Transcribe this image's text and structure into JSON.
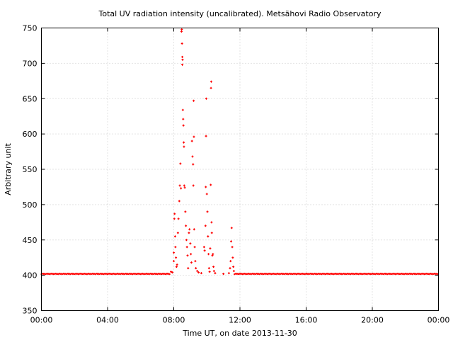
{
  "chart_data": {
    "type": "scatter",
    "title": "Total UV radiation intensity (uncalibrated). Metsähovi Radio Observatory",
    "xlabel": "Time UT, on date 2013-11-30",
    "ylabel": "Arbitrary unit",
    "xlim": [
      "00:00",
      "24:00"
    ],
    "ylim": [
      350,
      750
    ],
    "x_ticks": [
      "00:00",
      "04:00",
      "08:00",
      "12:00",
      "16:00",
      "20:00",
      "00:00"
    ],
    "y_ticks": [
      350,
      400,
      450,
      500,
      550,
      600,
      650,
      700,
      750
    ],
    "grid": true,
    "colors": {
      "series": "#ff0000",
      "grid": "#c8c8c8",
      "axis": "#000000"
    },
    "series": [
      {
        "baseline_segments": [
          {
            "x": [
              "00:00",
              "07:45"
            ],
            "y": 402
          },
          {
            "x": [
              "11:40",
              "24:00"
            ],
            "y": 402
          }
        ],
        "points": [
          {
            "x": "07:50",
            "y": 405
          },
          {
            "x": "07:55",
            "y": 404
          },
          {
            "x": "08:00",
            "y": 420
          },
          {
            "x": "08:00",
            "y": 432
          },
          {
            "x": "08:02",
            "y": 480
          },
          {
            "x": "08:03",
            "y": 487
          },
          {
            "x": "08:05",
            "y": 455
          },
          {
            "x": "08:06",
            "y": 440
          },
          {
            "x": "08:08",
            "y": 425
          },
          {
            "x": "08:10",
            "y": 412
          },
          {
            "x": "08:12",
            "y": 415
          },
          {
            "x": "08:15",
            "y": 460
          },
          {
            "x": "08:17",
            "y": 480
          },
          {
            "x": "08:20",
            "y": 505
          },
          {
            "x": "08:22",
            "y": 527
          },
          {
            "x": "08:24",
            "y": 558
          },
          {
            "x": "08:26",
            "y": 523
          },
          {
            "x": "08:28",
            "y": 745
          },
          {
            "x": "08:29",
            "y": 748
          },
          {
            "x": "08:30",
            "y": 728
          },
          {
            "x": "08:31",
            "y": 709
          },
          {
            "x": "08:31",
            "y": 698
          },
          {
            "x": "08:32",
            "y": 705
          },
          {
            "x": "08:33",
            "y": 634
          },
          {
            "x": "08:34",
            "y": 621
          },
          {
            "x": "08:35",
            "y": 612
          },
          {
            "x": "08:36",
            "y": 588
          },
          {
            "x": "08:37",
            "y": 582
          },
          {
            "x": "08:38",
            "y": 527
          },
          {
            "x": "08:40",
            "y": 524
          },
          {
            "x": "08:42",
            "y": 490
          },
          {
            "x": "08:44",
            "y": 470
          },
          {
            "x": "08:46",
            "y": 450
          },
          {
            "x": "08:48",
            "y": 440
          },
          {
            "x": "08:50",
            "y": 428
          },
          {
            "x": "08:52",
            "y": 410
          },
          {
            "x": "08:55",
            "y": 460
          },
          {
            "x": "08:57",
            "y": 465
          },
          {
            "x": "09:00",
            "y": 445
          },
          {
            "x": "09:02",
            "y": 430
          },
          {
            "x": "09:04",
            "y": 418
          },
          {
            "x": "09:06",
            "y": 590
          },
          {
            "x": "09:08",
            "y": 568
          },
          {
            "x": "09:10",
            "y": 557
          },
          {
            "x": "09:11",
            "y": 527
          },
          {
            "x": "09:12",
            "y": 647
          },
          {
            "x": "09:13",
            "y": 596
          },
          {
            "x": "09:14",
            "y": 465
          },
          {
            "x": "09:16",
            "y": 440
          },
          {
            "x": "09:18",
            "y": 420
          },
          {
            "x": "09:20",
            "y": 410
          },
          {
            "x": "09:25",
            "y": 406
          },
          {
            "x": "09:30",
            "y": 404
          },
          {
            "x": "09:40",
            "y": 403
          },
          {
            "x": "09:50",
            "y": 440
          },
          {
            "x": "09:52",
            "y": 435
          },
          {
            "x": "09:55",
            "y": 470
          },
          {
            "x": "09:56",
            "y": 525
          },
          {
            "x": "09:57",
            "y": 597
          },
          {
            "x": "09:58",
            "y": 650
          },
          {
            "x": "10:00",
            "y": 515
          },
          {
            "x": "10:02",
            "y": 490
          },
          {
            "x": "10:04",
            "y": 455
          },
          {
            "x": "10:06",
            "y": 430
          },
          {
            "x": "10:08",
            "y": 410
          },
          {
            "x": "10:10",
            "y": 405
          },
          {
            "x": "10:12",
            "y": 438
          },
          {
            "x": "10:14",
            "y": 528
          },
          {
            "x": "10:15",
            "y": 665
          },
          {
            "x": "10:16",
            "y": 674
          },
          {
            "x": "10:17",
            "y": 475
          },
          {
            "x": "10:18",
            "y": 460
          },
          {
            "x": "10:20",
            "y": 428
          },
          {
            "x": "10:22",
            "y": 430
          },
          {
            "x": "10:24",
            "y": 412
          },
          {
            "x": "10:26",
            "y": 406
          },
          {
            "x": "10:30",
            "y": 403
          },
          {
            "x": "11:00",
            "y": 402
          },
          {
            "x": "11:20",
            "y": 403
          },
          {
            "x": "11:24",
            "y": 410
          },
          {
            "x": "11:26",
            "y": 420
          },
          {
            "x": "11:28",
            "y": 448
          },
          {
            "x": "11:30",
            "y": 467
          },
          {
            "x": "11:32",
            "y": 440
          },
          {
            "x": "11:34",
            "y": 425
          },
          {
            "x": "11:36",
            "y": 412
          },
          {
            "x": "11:38",
            "y": 406
          }
        ]
      }
    ]
  }
}
